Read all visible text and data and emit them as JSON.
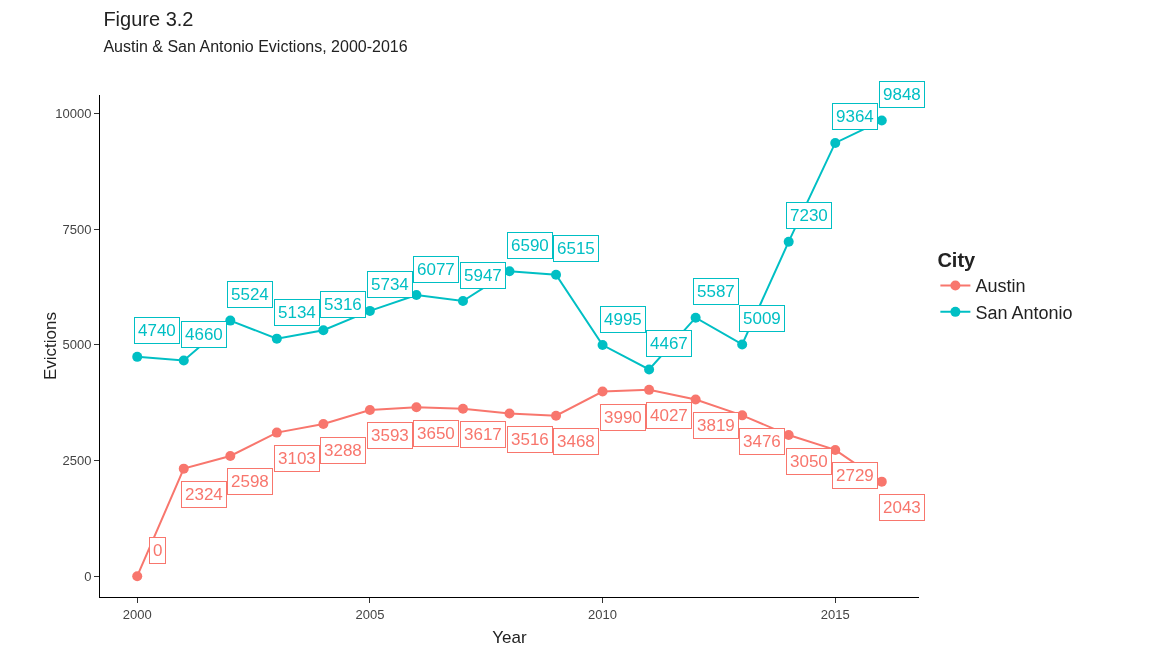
{
  "chart_data": {
    "type": "line",
    "title": "Figure 3.2",
    "subtitle": "Austin & San Antonio Evictions, 2000-2016",
    "xlabel": "Year",
    "ylabel": "Evictions",
    "legend_title": "City",
    "x": [
      2000,
      2001,
      2002,
      2003,
      2004,
      2005,
      2006,
      2007,
      2008,
      2009,
      2010,
      2011,
      2012,
      2013,
      2014,
      2015,
      2016
    ],
    "series": [
      {
        "name": "Austin",
        "color": "#f8766d",
        "values": [
          0,
          2324,
          2598,
          3103,
          3288,
          3593,
          3650,
          3617,
          3516,
          3468,
          3990,
          4027,
          3819,
          3476,
          3050,
          2729,
          2043
        ]
      },
      {
        "name": "San Antonio",
        "color": "#00bfc4",
        "values": [
          4740,
          4660,
          5524,
          5134,
          5316,
          5734,
          6077,
          5947,
          6590,
          6515,
          4995,
          4467,
          5587,
          5009,
          7230,
          9364,
          9848
        ]
      }
    ],
    "xlim": [
      1999.2,
      2016.8
    ],
    "xticks": [
      2000,
      2005,
      2010,
      2015
    ],
    "ylim": [
      -450,
      10400
    ],
    "yticks": [
      0,
      2500,
      5000,
      7500,
      10000
    ],
    "grid": false,
    "legend": "right",
    "marker": "circle",
    "line_style": "solid",
    "data_labels": true
  }
}
